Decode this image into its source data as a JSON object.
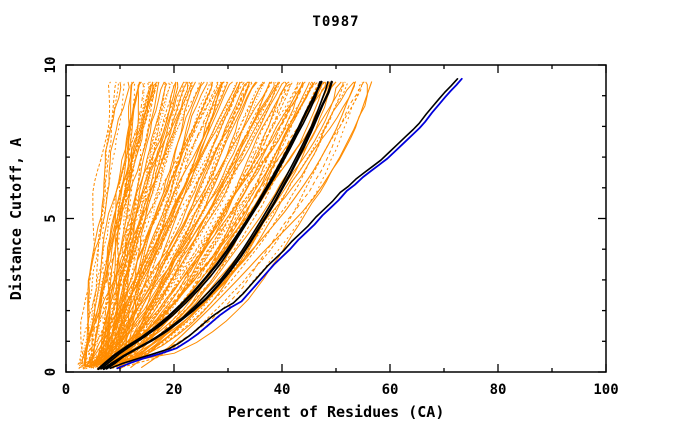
{
  "chart_data": {
    "type": "line",
    "title": "T0987",
    "xlabel": "Percent of Residues (CA)",
    "ylabel": "Distance Cutoff, A",
    "xlim": [
      0,
      100
    ],
    "ylim": [
      0,
      10
    ],
    "grid": false,
    "legend": "none",
    "x_major_ticks": [
      0,
      20,
      40,
      60,
      80,
      100
    ],
    "x_major_tick_labels": [
      "0",
      "20",
      "40",
      "60",
      "80",
      "100"
    ],
    "x_minor_ticks": [
      10,
      30,
      50,
      70,
      90
    ],
    "y_major_ticks": [
      0,
      5,
      10
    ],
    "y_major_tick_labels": [
      "0",
      "5",
      "10"
    ],
    "y_minor_ticks": [
      1,
      2,
      3,
      4,
      6,
      7,
      8,
      9
    ],
    "colors": {
      "ensemble": "#ff8c00",
      "best_models": "#000000",
      "reference": "#0000dd",
      "axis": "#000000",
      "background": "#ffffff"
    },
    "ensemble": {
      "name": "server-model-curves",
      "color_role": "ensemble",
      "count": 140,
      "seed": 20987,
      "bottom_x_range": [
        2.5,
        10.5
      ],
      "top_x_max": 55.5,
      "cutoff_top": 9.45,
      "dashed_fraction": 0.55,
      "dash_patterns": [
        "2 2",
        "1 2",
        "3 2",
        "2 3",
        "4 3"
      ]
    },
    "series": [
      {
        "name": "orange-outlier-1",
        "color_role": "ensemble",
        "width": 1.1,
        "dash": null,
        "points": [
          [
            14,
            0.15
          ],
          [
            16.5,
            0.45
          ],
          [
            19,
            0.8
          ],
          [
            21.5,
            1.2
          ],
          [
            24,
            1.62
          ],
          [
            26.5,
            2.05
          ],
          [
            29,
            2.5
          ],
          [
            31.5,
            2.95
          ],
          [
            34,
            3.42
          ],
          [
            36.5,
            3.9
          ],
          [
            39,
            4.35
          ],
          [
            41.5,
            4.8
          ],
          [
            43.8,
            5.22
          ],
          [
            45.8,
            5.65
          ],
          [
            47.6,
            6.1
          ],
          [
            49.2,
            6.55
          ],
          [
            50.7,
            7.0
          ],
          [
            52,
            7.45
          ],
          [
            53.3,
            7.9
          ],
          [
            54.4,
            8.35
          ],
          [
            55.3,
            8.8
          ],
          [
            56,
            9.15
          ],
          [
            56.6,
            9.45
          ]
        ]
      },
      {
        "name": "orange-outlier-2",
        "color_role": "ensemble",
        "width": 1.1,
        "dash": null,
        "points": [
          [
            12,
            0.15
          ],
          [
            14.2,
            0.45
          ],
          [
            16.6,
            0.8
          ],
          [
            19,
            1.18
          ],
          [
            21.5,
            1.58
          ],
          [
            24,
            2.0
          ],
          [
            26.5,
            2.45
          ],
          [
            29,
            2.9
          ],
          [
            31.4,
            3.38
          ],
          [
            33.8,
            3.85
          ],
          [
            36.1,
            4.3
          ],
          [
            38.3,
            4.75
          ],
          [
            40.4,
            5.2
          ],
          [
            42.3,
            5.65
          ],
          [
            44.1,
            6.1
          ],
          [
            45.8,
            6.55
          ],
          [
            47.3,
            7.0
          ],
          [
            48.7,
            7.45
          ],
          [
            50,
            7.9
          ],
          [
            51.1,
            8.35
          ],
          [
            52.1,
            8.8
          ],
          [
            52.9,
            9.15
          ],
          [
            53.6,
            9.45
          ]
        ]
      },
      {
        "name": "black-weave-2",
        "color_role": "best_models",
        "width": 1.6,
        "dash": null,
        "points": [
          [
            6.5,
            0.1
          ],
          [
            8,
            0.32
          ],
          [
            9.8,
            0.58
          ],
          [
            12,
            0.85
          ],
          [
            14.6,
            1.15
          ],
          [
            17.2,
            1.48
          ],
          [
            19.8,
            1.85
          ],
          [
            22.2,
            2.25
          ],
          [
            24.6,
            2.68
          ],
          [
            26.8,
            3.12
          ],
          [
            28.8,
            3.58
          ],
          [
            30.6,
            4.05
          ],
          [
            32.3,
            4.52
          ],
          [
            34,
            5.0
          ],
          [
            35.6,
            5.45
          ],
          [
            37.1,
            5.9
          ],
          [
            38.6,
            6.35
          ],
          [
            40,
            6.8
          ],
          [
            41.4,
            7.25
          ],
          [
            42.7,
            7.7
          ],
          [
            44,
            8.12
          ],
          [
            45.2,
            8.55
          ],
          [
            46.2,
            8.95
          ],
          [
            47,
            9.45
          ]
        ]
      },
      {
        "name": "black-weave-1",
        "color_role": "best_models",
        "width": 1.6,
        "dash": null,
        "points": [
          [
            7.5,
            0.1
          ],
          [
            9.2,
            0.3
          ],
          [
            11,
            0.55
          ],
          [
            13.5,
            0.8
          ],
          [
            16.5,
            1.1
          ],
          [
            19.2,
            1.45
          ],
          [
            21.8,
            1.8
          ],
          [
            24.2,
            2.2
          ],
          [
            26.5,
            2.62
          ],
          [
            28.8,
            3.05
          ],
          [
            30.8,
            3.5
          ],
          [
            32.6,
            3.95
          ],
          [
            34.3,
            4.42
          ],
          [
            35.9,
            4.88
          ],
          [
            37.4,
            5.32
          ],
          [
            38.9,
            5.78
          ],
          [
            40.3,
            6.22
          ],
          [
            41.7,
            6.68
          ],
          [
            43,
            7.12
          ],
          [
            44.3,
            7.58
          ],
          [
            45.5,
            8.02
          ],
          [
            46.5,
            8.45
          ],
          [
            47.4,
            8.88
          ],
          [
            48.1,
            9.2
          ],
          [
            48.5,
            9.45
          ]
        ]
      },
      {
        "name": "black-thick-2",
        "color_role": "best_models",
        "width": 2.4,
        "dash": null,
        "points": [
          [
            6,
            0.1
          ],
          [
            7.3,
            0.3
          ],
          [
            9,
            0.55
          ],
          [
            11.2,
            0.82
          ],
          [
            13.8,
            1.1
          ],
          [
            16.3,
            1.42
          ],
          [
            18.8,
            1.78
          ],
          [
            21.2,
            2.18
          ],
          [
            23.6,
            2.6
          ],
          [
            25.8,
            3.05
          ],
          [
            27.9,
            3.5
          ],
          [
            29.8,
            3.95
          ],
          [
            31.5,
            4.4
          ],
          [
            33.2,
            4.85
          ],
          [
            34.8,
            5.3
          ],
          [
            36.3,
            5.75
          ],
          [
            37.8,
            6.2
          ],
          [
            39.2,
            6.65
          ],
          [
            40.6,
            7.1
          ],
          [
            41.9,
            7.55
          ],
          [
            43.2,
            8.0
          ],
          [
            44.4,
            8.45
          ],
          [
            45.6,
            8.85
          ],
          [
            46.6,
            9.2
          ],
          [
            47.3,
            9.45
          ]
        ]
      },
      {
        "name": "black-thick-1",
        "color_role": "best_models",
        "width": 2.4,
        "dash": null,
        "points": [
          [
            7,
            0.1
          ],
          [
            8.5,
            0.28
          ],
          [
            10.5,
            0.5
          ],
          [
            13,
            0.75
          ],
          [
            15.8,
            1.02
          ],
          [
            18.5,
            1.32
          ],
          [
            21,
            1.65
          ],
          [
            23.5,
            2.0
          ],
          [
            26,
            2.4
          ],
          [
            28.3,
            2.85
          ],
          [
            30.4,
            3.3
          ],
          [
            32.3,
            3.75
          ],
          [
            34,
            4.2
          ],
          [
            35.6,
            4.65
          ],
          [
            37.2,
            5.1
          ],
          [
            38.7,
            5.55
          ],
          [
            40.1,
            6.0
          ],
          [
            41.5,
            6.45
          ],
          [
            42.8,
            6.9
          ],
          [
            44.1,
            7.35
          ],
          [
            45.3,
            7.8
          ],
          [
            46.4,
            8.25
          ],
          [
            47.5,
            8.7
          ],
          [
            48.6,
            9.1
          ],
          [
            49.2,
            9.45
          ]
        ]
      },
      {
        "name": "black-long-thin",
        "color_role": "best_models",
        "width": 1.6,
        "dash": null,
        "points": [
          [
            8.2,
            0.12
          ],
          [
            10.5,
            0.28
          ],
          [
            13,
            0.42
          ],
          [
            16,
            0.58
          ],
          [
            19,
            0.75
          ],
          [
            21,
            0.95
          ],
          [
            23,
            1.2
          ],
          [
            25,
            1.5
          ],
          [
            27,
            1.8
          ],
          [
            29,
            2.05
          ],
          [
            31,
            2.25
          ],
          [
            32.8,
            2.55
          ],
          [
            34.3,
            2.85
          ],
          [
            35.8,
            3.15
          ],
          [
            37.3,
            3.45
          ],
          [
            38.8,
            3.7
          ],
          [
            40.3,
            3.95
          ],
          [
            41.8,
            4.25
          ],
          [
            43.3,
            4.5
          ],
          [
            44.8,
            4.75
          ],
          [
            46.3,
            5.05
          ],
          [
            47.8,
            5.3
          ],
          [
            49.3,
            5.55
          ],
          [
            50.8,
            5.85
          ],
          [
            52.3,
            6.05
          ],
          [
            53.8,
            6.3
          ],
          [
            55.3,
            6.5
          ],
          [
            56.8,
            6.7
          ],
          [
            58.3,
            6.9
          ],
          [
            59.8,
            7.15
          ],
          [
            61.3,
            7.4
          ],
          [
            62.8,
            7.65
          ],
          [
            64.3,
            7.9
          ],
          [
            65.4,
            8.1
          ],
          [
            66.7,
            8.4
          ],
          [
            67.9,
            8.65
          ],
          [
            69.1,
            8.9
          ],
          [
            70.1,
            9.1
          ],
          [
            71.3,
            9.32
          ],
          [
            72.5,
            9.55
          ]
        ]
      },
      {
        "name": "blue-reference",
        "color_role": "reference",
        "width": 1.8,
        "dash": null,
        "points": [
          [
            9.5,
            0.12
          ],
          [
            12,
            0.3
          ],
          [
            14.5,
            0.45
          ],
          [
            17.5,
            0.6
          ],
          [
            20.5,
            0.78
          ],
          [
            22.5,
            1.0
          ],
          [
            24.5,
            1.25
          ],
          [
            26.5,
            1.55
          ],
          [
            28.5,
            1.85
          ],
          [
            30.5,
            2.1
          ],
          [
            32.5,
            2.3
          ],
          [
            34,
            2.6
          ],
          [
            35.5,
            2.9
          ],
          [
            37,
            3.2
          ],
          [
            38.5,
            3.5
          ],
          [
            40,
            3.75
          ],
          [
            41.5,
            4.0
          ],
          [
            43,
            4.3
          ],
          [
            44.5,
            4.55
          ],
          [
            46,
            4.8
          ],
          [
            47.5,
            5.1
          ],
          [
            49,
            5.35
          ],
          [
            50.5,
            5.6
          ],
          [
            52,
            5.9
          ],
          [
            53.5,
            6.1
          ],
          [
            55,
            6.35
          ],
          [
            56.5,
            6.55
          ],
          [
            58,
            6.75
          ],
          [
            59.5,
            6.95
          ],
          [
            61,
            7.2
          ],
          [
            62.5,
            7.45
          ],
          [
            64,
            7.7
          ],
          [
            65.5,
            7.95
          ],
          [
            66.5,
            8.15
          ],
          [
            67.8,
            8.45
          ],
          [
            69,
            8.7
          ],
          [
            70.2,
            8.95
          ],
          [
            71.2,
            9.15
          ],
          [
            72.3,
            9.35
          ],
          [
            73.3,
            9.55
          ]
        ]
      }
    ]
  }
}
